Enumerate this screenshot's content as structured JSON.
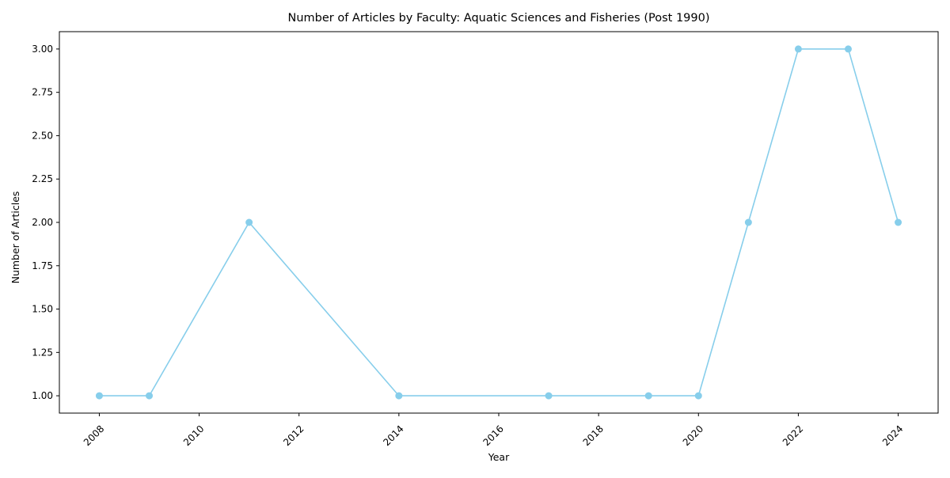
{
  "chart_data": {
    "type": "line",
    "title": "Number of Articles by Faculty: Aquatic Sciences and Fisheries (Post 1990)",
    "xlabel": "Year",
    "ylabel": "Number of Articles",
    "x": [
      2008,
      2009,
      2011,
      2014,
      2017,
      2019,
      2020,
      2021,
      2022,
      2023,
      2024
    ],
    "y": [
      1,
      1,
      2,
      1,
      1,
      1,
      1,
      2,
      3,
      3,
      2
    ],
    "xlim": [
      2007.2,
      2024.8
    ],
    "ylim": [
      0.9,
      3.1
    ],
    "xticks": [
      2008,
      2010,
      2012,
      2014,
      2016,
      2018,
      2020,
      2022,
      2024
    ],
    "yticks": [
      "1.00",
      "1.25",
      "1.50",
      "1.75",
      "2.00",
      "2.25",
      "2.50",
      "2.75",
      "3.00"
    ],
    "line_color": "#87CEEB",
    "marker": "circle",
    "grid": false,
    "legend": false
  }
}
